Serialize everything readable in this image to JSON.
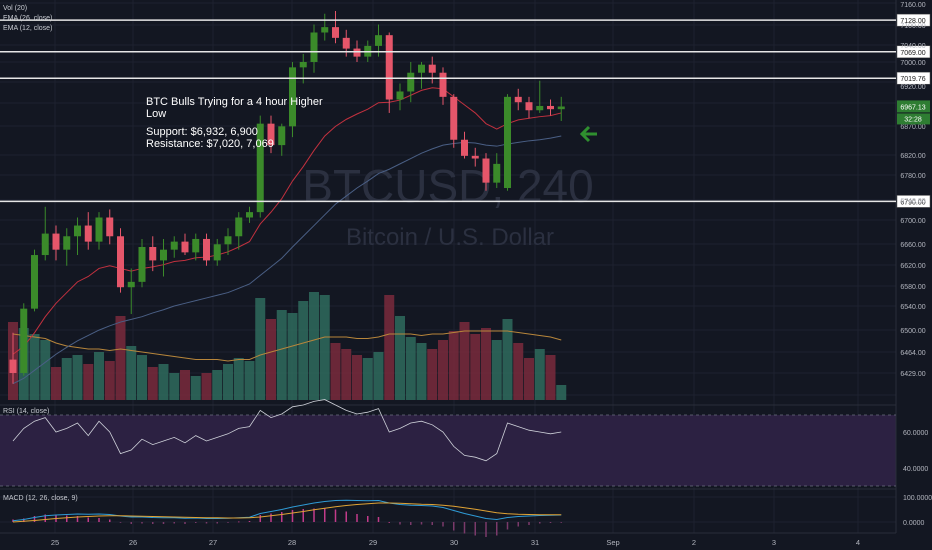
{
  "symbol": "BTCUSD, 240",
  "description": "Bitcoin / U.S. Dollar",
  "indicator_labels": {
    "vol": "Vol (20)",
    "ema26": "EMA (26, close)",
    "ema12": "EMA (12, close)",
    "rsi": "RSI (14, close)",
    "macd": "MACD (12, 26, close, 9)"
  },
  "annotation": {
    "line1": "BTC Bulls Trying for a 4 hour Higher",
    "line2": "Low",
    "line3": "Support: $6,932, 6,900",
    "line4": "Resistance: $7,020, 7,069"
  },
  "colors": {
    "background": "#131722",
    "bull": "#3b8a2a",
    "bear": "#e5566a",
    "ema12": "#c2313f",
    "ema26": "#4a5f85",
    "rsi_fill": "#2c2142",
    "rsi_line": "#cfd2da",
    "arrow": "#2f8f2f",
    "hline": "#e6e6e6"
  },
  "chart_data": {
    "type": "candlestick",
    "timeframe": "240",
    "x_tick_labels": [
      "25",
      "26",
      "27",
      "28",
      "29",
      "30",
      "31",
      "Sep",
      "2",
      "3",
      "4"
    ],
    "y_tick_labels": [
      "7160.00",
      "7100.00",
      "7040.00",
      "7000.00",
      "6920.00",
      "6870.00",
      "6820.00",
      "6780.00",
      "6740.00",
      "6700.00",
      "6660.00",
      "6620.00",
      "6580.00",
      "6540.00",
      "6500.00",
      "6464.00",
      "6429.00"
    ],
    "ylim": [
      6429,
      7160
    ],
    "horizontal_levels": [
      7128.0,
      7069.0,
      7019.76,
      6790.0
    ],
    "current_price": "6967.13",
    "countdown": "32:28",
    "candles": [
      {
        "o": 6495,
        "h": 6545,
        "l": 6450,
        "c": 6470
      },
      {
        "o": 6470,
        "h": 6600,
        "l": 6465,
        "c": 6590
      },
      {
        "o": 6590,
        "h": 6700,
        "l": 6585,
        "c": 6690
      },
      {
        "o": 6690,
        "h": 6780,
        "l": 6680,
        "c": 6730
      },
      {
        "o": 6730,
        "h": 6745,
        "l": 6680,
        "c": 6700
      },
      {
        "o": 6700,
        "h": 6740,
        "l": 6670,
        "c": 6725
      },
      {
        "o": 6725,
        "h": 6760,
        "l": 6690,
        "c": 6745
      },
      {
        "o": 6745,
        "h": 6770,
        "l": 6700,
        "c": 6715
      },
      {
        "o": 6715,
        "h": 6770,
        "l": 6700,
        "c": 6760
      },
      {
        "o": 6760,
        "h": 6775,
        "l": 6710,
        "c": 6725
      },
      {
        "o": 6725,
        "h": 6740,
        "l": 6620,
        "c": 6630
      },
      {
        "o": 6630,
        "h": 6665,
        "l": 6580,
        "c": 6640
      },
      {
        "o": 6640,
        "h": 6720,
        "l": 6630,
        "c": 6705
      },
      {
        "o": 6705,
        "h": 6725,
        "l": 6660,
        "c": 6680
      },
      {
        "o": 6680,
        "h": 6720,
        "l": 6650,
        "c": 6700
      },
      {
        "o": 6700,
        "h": 6725,
        "l": 6685,
        "c": 6715
      },
      {
        "o": 6715,
        "h": 6730,
        "l": 6690,
        "c": 6695
      },
      {
        "o": 6695,
        "h": 6730,
        "l": 6680,
        "c": 6720
      },
      {
        "o": 6720,
        "h": 6730,
        "l": 6670,
        "c": 6680
      },
      {
        "o": 6680,
        "h": 6720,
        "l": 6670,
        "c": 6710
      },
      {
        "o": 6710,
        "h": 6740,
        "l": 6690,
        "c": 6725
      },
      {
        "o": 6725,
        "h": 6770,
        "l": 6700,
        "c": 6760
      },
      {
        "o": 6760,
        "h": 6780,
        "l": 6750,
        "c": 6770
      },
      {
        "o": 6770,
        "h": 6950,
        "l": 6760,
        "c": 6935
      },
      {
        "o": 6935,
        "h": 6950,
        "l": 6880,
        "c": 6895
      },
      {
        "o": 6895,
        "h": 6935,
        "l": 6875,
        "c": 6930
      },
      {
        "o": 6930,
        "h": 7050,
        "l": 6910,
        "c": 7040
      },
      {
        "o": 7040,
        "h": 7065,
        "l": 7010,
        "c": 7050
      },
      {
        "o": 7050,
        "h": 7120,
        "l": 7030,
        "c": 7105
      },
      {
        "o": 7105,
        "h": 7140,
        "l": 7090,
        "c": 7115
      },
      {
        "o": 7115,
        "h": 7145,
        "l": 7085,
        "c": 7095
      },
      {
        "o": 7095,
        "h": 7110,
        "l": 7060,
        "c": 7075
      },
      {
        "o": 7075,
        "h": 7090,
        "l": 7050,
        "c": 7060
      },
      {
        "o": 7060,
        "h": 7090,
        "l": 7050,
        "c": 7080
      },
      {
        "o": 7080,
        "h": 7120,
        "l": 7060,
        "c": 7100
      },
      {
        "o": 7100,
        "h": 7105,
        "l": 6955,
        "c": 6980
      },
      {
        "o": 6980,
        "h": 7010,
        "l": 6960,
        "c": 6995
      },
      {
        "o": 6995,
        "h": 7050,
        "l": 6975,
        "c": 7030
      },
      {
        "o": 7030,
        "h": 7050,
        "l": 7000,
        "c": 7045
      },
      {
        "o": 7045,
        "h": 7060,
        "l": 7010,
        "c": 7030
      },
      {
        "o": 7030,
        "h": 7040,
        "l": 6970,
        "c": 6985
      },
      {
        "o": 6985,
        "h": 6990,
        "l": 6890,
        "c": 6905
      },
      {
        "o": 6905,
        "h": 6920,
        "l": 6870,
        "c": 6875
      },
      {
        "o": 6875,
        "h": 6890,
        "l": 6855,
        "c": 6870
      },
      {
        "o": 6870,
        "h": 6880,
        "l": 6810,
        "c": 6825
      },
      {
        "o": 6825,
        "h": 6880,
        "l": 6815,
        "c": 6860
      },
      {
        "o": 6815,
        "h": 6990,
        "l": 6810,
        "c": 6985
      },
      {
        "o": 6985,
        "h": 7000,
        "l": 6960,
        "c": 6975
      },
      {
        "o": 6975,
        "h": 6985,
        "l": 6945,
        "c": 6960
      },
      {
        "o": 6960,
        "h": 7015,
        "l": 6955,
        "c": 6968
      },
      {
        "o": 6968,
        "h": 6980,
        "l": 6950,
        "c": 6962
      },
      {
        "o": 6962,
        "h": 6985,
        "l": 6940,
        "c": 6967
      }
    ],
    "volume": [
      52,
      48,
      44,
      40,
      22,
      28,
      30,
      24,
      32,
      26,
      56,
      36,
      30,
      22,
      24,
      18,
      20,
      16,
      18,
      20,
      24,
      28,
      26,
      68,
      54,
      60,
      58,
      66,
      72,
      70,
      38,
      34,
      30,
      28,
      32,
      70,
      56,
      42,
      38,
      34,
      40,
      46,
      52,
      44,
      48,
      40,
      54,
      38,
      28,
      34,
      30,
      10
    ],
    "ema12": [
      6505,
      6520,
      6545,
      6575,
      6600,
      6620,
      6640,
      6650,
      6665,
      6670,
      6665,
      6660,
      6665,
      6668,
      6672,
      6678,
      6680,
      6685,
      6686,
      6690,
      6696,
      6705,
      6715,
      6748,
      6770,
      6795,
      6828,
      6855,
      6885,
      6912,
      6930,
      6943,
      6953,
      6962,
      6974,
      6975,
      6979,
      6988,
      6997,
      7002,
      7000,
      6985,
      6970,
      6955,
      6935,
      6925,
      6935,
      6942,
      6945,
      6948,
      6950,
      6955
    ],
    "ema26": [
      6450,
      6460,
      6475,
      6490,
      6505,
      6518,
      6530,
      6540,
      6550,
      6558,
      6565,
      6570,
      6575,
      6582,
      6588,
      6595,
      6600,
      6605,
      6610,
      6615,
      6620,
      6628,
      6636,
      6652,
      6668,
      6684,
      6705,
      6725,
      6745,
      6765,
      6785,
      6800,
      6815,
      6828,
      6842,
      6850,
      6860,
      6870,
      6880,
      6888,
      6895,
      6898,
      6900,
      6899,
      6895,
      6893,
      6897,
      6900,
      6903,
      6905,
      6908,
      6912
    ],
    "vol_ma": [
      44,
      43,
      42,
      41,
      38,
      36,
      35,
      34,
      34,
      33,
      34,
      33,
      32,
      31,
      30,
      29,
      28,
      27,
      27,
      27,
      26,
      27,
      27,
      30,
      32,
      34,
      36,
      38,
      40,
      42,
      42,
      42,
      41,
      41,
      42,
      44,
      44,
      44,
      43,
      44,
      44,
      45,
      46,
      46,
      46,
      46,
      46,
      45,
      44,
      43,
      42,
      40
    ],
    "rsi": [
      55,
      62,
      66,
      68,
      60,
      62,
      65,
      58,
      66,
      60,
      48,
      50,
      56,
      53,
      55,
      57,
      54,
      58,
      55,
      57,
      59,
      62,
      63,
      72,
      68,
      70,
      74,
      75,
      77,
      78,
      75,
      72,
      70,
      71,
      73,
      60,
      62,
      65,
      66,
      64,
      60,
      52,
      47,
      46,
      44,
      48,
      65,
      63,
      61,
      60,
      59,
      60
    ],
    "rsi_levels": [
      "60.0000",
      "40.0000"
    ],
    "macd_levels": [
      "100.0000",
      "0.0000"
    ],
    "macd_line": [
      5,
      10,
      18,
      25,
      28,
      30,
      32,
      31,
      32,
      30,
      24,
      20,
      20,
      18,
      17,
      17,
      15,
      16,
      14,
      14,
      15,
      17,
      19,
      34,
      42,
      50,
      60,
      68,
      76,
      82,
      86,
      87,
      86,
      85,
      86,
      76,
      70,
      67,
      66,
      64,
      58,
      46,
      34,
      24,
      14,
      10,
      18,
      22,
      24,
      26,
      27,
      28
    ],
    "macd_signal": [
      0,
      3,
      6,
      10,
      14,
      17,
      20,
      22,
      24,
      25,
      25,
      24,
      23,
      22,
      21,
      20,
      19,
      18,
      17,
      17,
      16,
      16,
      17,
      20,
      25,
      30,
      36,
      42,
      49,
      55,
      61,
      66,
      70,
      73,
      76,
      76,
      75,
      73,
      71,
      70,
      67,
      63,
      57,
      51,
      44,
      37,
      33,
      31,
      30,
      29,
      29,
      29
    ]
  }
}
